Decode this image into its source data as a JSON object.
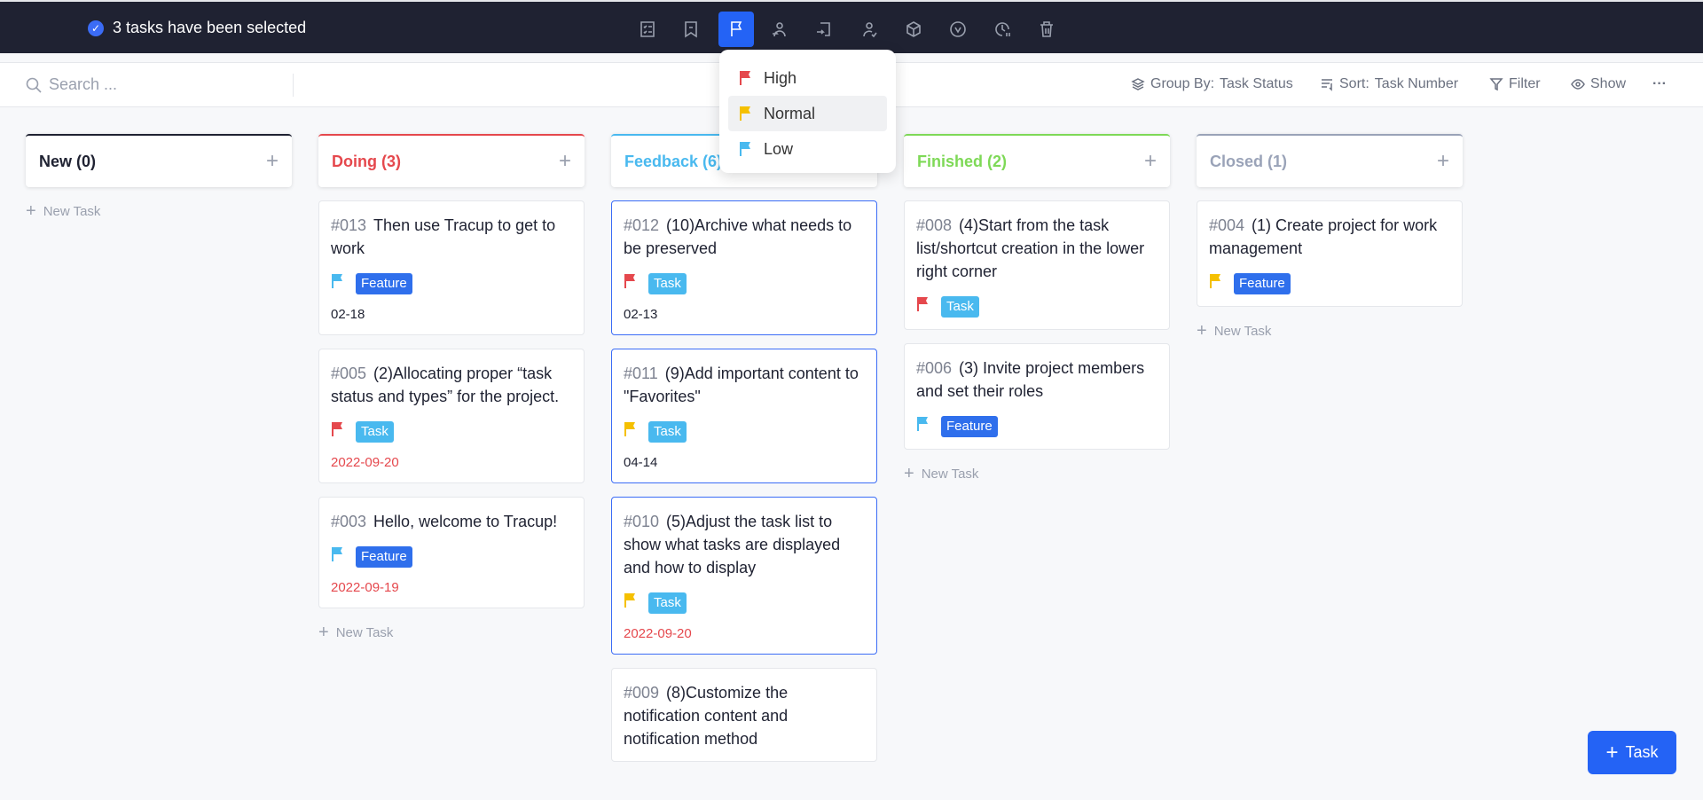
{
  "selection": {
    "text": "3 tasks have been selected"
  },
  "bulk_actions": [
    "checklist-icon",
    "bookmark-icon",
    "priority-flag-icon",
    "assign-user-icon",
    "move-icon",
    "follower-icon",
    "cube-icon",
    "status-icon",
    "schedule-icon",
    "delete-icon"
  ],
  "toolbar": {
    "search_placeholder": "Search ...",
    "group_by_label": "Group By:",
    "group_by_value": "Task Status",
    "sort_label": "Sort:",
    "sort_value": "Task Number",
    "filter": "Filter",
    "show": "Show",
    "more": "···"
  },
  "priority_menu": {
    "items": [
      {
        "label": "High",
        "color": "#e5484d"
      },
      {
        "label": "Normal",
        "color": "#f5c000"
      },
      {
        "label": "Low",
        "color": "#49b9ef"
      }
    ],
    "highlighted": "Normal"
  },
  "new_task_label": "New Task",
  "columns": [
    {
      "title": "New (0)",
      "color": "#1f2232",
      "cards": []
    },
    {
      "title": "Doing (3)",
      "color": "#e5484d",
      "cards": [
        {
          "num": "#013",
          "title": "Then use Tracup to get to work",
          "flag": "#49b9ef",
          "tag": "Feature",
          "date": "02-18",
          "overdue": false,
          "selected": false
        },
        {
          "num": "#005",
          "title": "(2)Allocating proper “task status and types” for the project.",
          "flag": "#e5484d",
          "tag": "Task",
          "date": "2022-09-20",
          "overdue": true,
          "selected": false
        },
        {
          "num": "#003",
          "title": "Hello, welcome to Tracup!",
          "flag": "#49b9ef",
          "tag": "Feature",
          "date": "2022-09-19",
          "overdue": true,
          "selected": false
        }
      ]
    },
    {
      "title": "Feedback (6)",
      "color": "#49b9ef",
      "cards": [
        {
          "num": "#012",
          "title": "(10)Archive what needs to be preserved",
          "flag": "#e5484d",
          "tag": "Task",
          "date": "02-13",
          "overdue": false,
          "selected": true
        },
        {
          "num": "#011",
          "title": "(9)Add important content to \"Favorites\"",
          "flag": "#f5c000",
          "tag": "Task",
          "date": "04-14",
          "overdue": false,
          "selected": true
        },
        {
          "num": "#010",
          "title": "(5)Adjust the task list to show what tasks are displayed and how to display",
          "flag": "#f5c000",
          "tag": "Task",
          "date": "2022-09-20",
          "overdue": true,
          "selected": true
        },
        {
          "num": "#009",
          "title": "(8)Customize the notification content and notification method",
          "flag": "",
          "tag": "",
          "date": "",
          "overdue": false,
          "selected": false
        }
      ]
    },
    {
      "title": "Finished (2)",
      "color": "#7ed957",
      "cards": [
        {
          "num": "#008",
          "title": "(4)Start from the task list/shortcut creation in the lower right corner",
          "flag": "#e5484d",
          "tag": "Task",
          "date": "",
          "overdue": false,
          "selected": false
        },
        {
          "num": "#006",
          "title": "(3) Invite project members and set their roles",
          "flag": "#49b9ef",
          "tag": "Feature",
          "date": "",
          "overdue": false,
          "selected": false
        }
      ]
    },
    {
      "title": "Closed (1)",
      "color": "#9aa3b8",
      "cards": [
        {
          "num": "#004",
          "title": "(1) Create project for work management",
          "flag": "#f5c000",
          "tag": "Feature",
          "date": "",
          "overdue": false,
          "selected": false
        }
      ]
    }
  ],
  "fab": {
    "label": "Task"
  }
}
